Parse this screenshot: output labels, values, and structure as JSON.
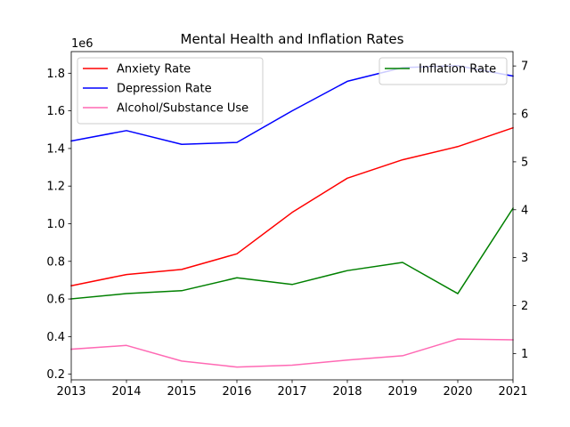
{
  "chart_data": {
    "type": "line",
    "title": "Mental Health and Inflation Rates",
    "x": [
      2013,
      2014,
      2015,
      2016,
      2017,
      2018,
      2019,
      2020,
      2021
    ],
    "x_ticks": [
      "2013",
      "2014",
      "2015",
      "2016",
      "2017",
      "2018",
      "2019",
      "2020",
      "2021"
    ],
    "xlim": [
      2013,
      2021
    ],
    "left_axis": {
      "ylim": [
        170000,
        1915000
      ],
      "ticks": [
        200000,
        400000,
        600000,
        800000,
        1000000,
        1200000,
        1400000,
        1600000,
        1800000
      ],
      "tick_labels": [
        "0.2",
        "0.4",
        "0.6",
        "0.8",
        "1.0",
        "1.2",
        "1.4",
        "1.6",
        "1.8"
      ],
      "offset_label": "1e6"
    },
    "right_axis": {
      "ylim": [
        0.45,
        7.3
      ],
      "ticks": [
        1,
        2,
        3,
        4,
        5,
        6,
        7
      ],
      "tick_labels": [
        "1",
        "2",
        "3",
        "4",
        "5",
        "6",
        "7"
      ]
    },
    "series": [
      {
        "name": "Anxiety Rate",
        "axis": "left",
        "color": "#ff0000",
        "values": [
          670000,
          730000,
          757000,
          840000,
          1060000,
          1242000,
          1340000,
          1410000,
          1510000
        ]
      },
      {
        "name": "Depression Rate",
        "axis": "left",
        "color": "#0000ff",
        "values": [
          1440000,
          1495000,
          1422000,
          1432000,
          1600000,
          1757000,
          1830000,
          1840000,
          1785000
        ]
      },
      {
        "name": "Alcohol/Substance Use",
        "axis": "left",
        "color": "#ff69b4",
        "values": [
          333000,
          353000,
          270000,
          238000,
          248000,
          275000,
          298000,
          387000,
          383000
        ]
      },
      {
        "name": "Inflation Rate",
        "axis": "right",
        "color": "#008000",
        "values": [
          2.14,
          2.25,
          2.31,
          2.58,
          2.44,
          2.73,
          2.9,
          2.25,
          4.03
        ]
      }
    ],
    "legends": [
      {
        "placement": "upper-left",
        "entries": [
          "Anxiety Rate",
          "Depression Rate",
          "Alcohol/Substance Use"
        ]
      },
      {
        "placement": "upper-right",
        "entries": [
          "Inflation Rate"
        ]
      }
    ],
    "grid": false
  }
}
